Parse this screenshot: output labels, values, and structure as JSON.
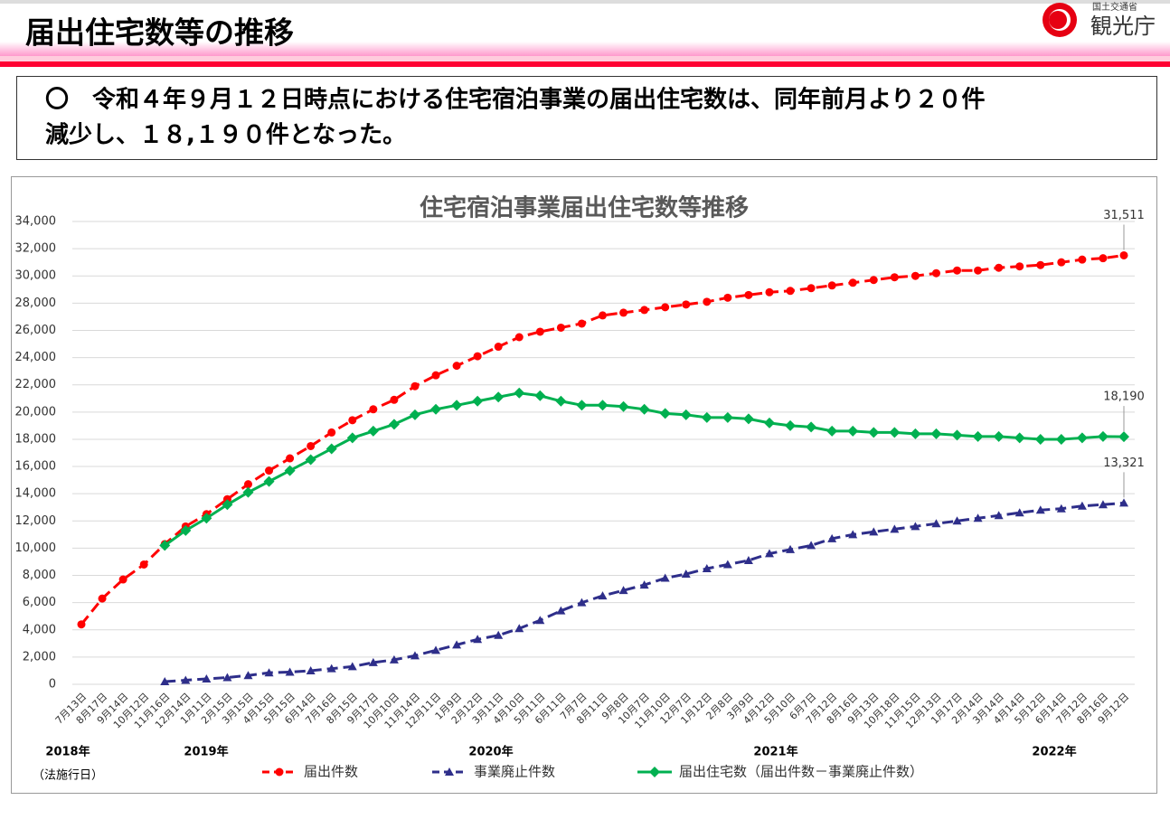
{
  "header": {
    "title": "届出住宅数等の推移",
    "ministry": "国土交通省",
    "agency": "観光庁"
  },
  "summary": [
    "〇　令和４年９月１２日時点における住宅宿泊事業の届出住宅数は、同年前月より２０件",
    "減少し、１８,１９０件となった。"
  ],
  "chart_data": {
    "type": "line",
    "title": "住宅宿泊事業届出住宅数等推移",
    "categories": [
      "7月13日",
      "8月17日",
      "9月14日",
      "10月12日",
      "11月16日",
      "12月14日",
      "1月11日",
      "2月15日",
      "3月15日",
      "4月15日",
      "5月15日",
      "6月14日",
      "7月16日",
      "8月15日",
      "9月17日",
      "10月10日",
      "11月14日",
      "12月11日",
      "1月9日",
      "2月12日",
      "3月11日",
      "4月10日",
      "5月11日",
      "6月11日",
      "7月7日",
      "8月11日",
      "9月8日",
      "10月7日",
      "11月10日",
      "12月7日",
      "1月12日",
      "2月8日",
      "3月9日",
      "4月12日",
      "5月10日",
      "6月7日",
      "7月12日",
      "8月16日",
      "9月13日",
      "10月18日",
      "11月15日",
      "12月13日",
      "1月17日",
      "2月14日",
      "3月14日",
      "4月14日",
      "5月12日",
      "6月14日",
      "7月12日",
      "8月16日",
      "9月12日"
    ],
    "year_labels": [
      "2018年",
      "2019年",
      "2020年",
      "2021年",
      "2022年"
    ],
    "note": "（法施行日）",
    "series": [
      {
        "name": "届出件数",
        "color": "#ff0000",
        "dashed": true,
        "marker": "circle",
        "values": [
          4400,
          6300,
          7700,
          8800,
          10300,
          11600,
          12500,
          13600,
          14700,
          15700,
          16600,
          17500,
          18500,
          19400,
          20200,
          20900,
          21900,
          22700,
          23400,
          24100,
          24800,
          25500,
          25900,
          26200,
          26500,
          27100,
          27300,
          27500,
          27700,
          27900,
          28100,
          28400,
          28600,
          28800,
          28900,
          29100,
          29300,
          29500,
          29700,
          29900,
          30000,
          30200,
          30400,
          30400,
          30600,
          30700,
          30800,
          31000,
          31200,
          31300,
          31511
        ],
        "value_labels": {
          "50": "31,511"
        }
      },
      {
        "name": "事業廃止件数",
        "color": "#2e2e8a",
        "dashed": true,
        "marker": "triangle",
        "values": [
          null,
          null,
          null,
          null,
          200,
          300,
          400,
          500,
          650,
          850,
          900,
          1000,
          1150,
          1300,
          1600,
          1800,
          2100,
          2500,
          2900,
          3300,
          3600,
          4100,
          4700,
          5400,
          6000,
          6500,
          6900,
          7300,
          7800,
          8100,
          8500,
          8800,
          9100,
          9600,
          9900,
          10200,
          10700,
          11000,
          11200,
          11400,
          11600,
          11800,
          12000,
          12200,
          12400,
          12600,
          12800,
          12900,
          13100,
          13200,
          13321
        ],
        "value_labels": {
          "50": "13,321"
        }
      },
      {
        "name": "届出住宅数（届出件数－事業廃止件数）",
        "color": "#00b050",
        "dashed": false,
        "marker": "diamond",
        "values": [
          null,
          null,
          null,
          null,
          10200,
          11300,
          12200,
          13200,
          14100,
          14900,
          15700,
          16500,
          17300,
          18100,
          18600,
          19100,
          19800,
          20200,
          20500,
          20800,
          21100,
          21400,
          21200,
          20800,
          20500,
          20500,
          20400,
          20200,
          19900,
          19800,
          19600,
          19600,
          19500,
          19200,
          19000,
          18900,
          18600,
          18600,
          18500,
          18500,
          18400,
          18400,
          18300,
          18200,
          18200,
          18100,
          18000,
          18000,
          18100,
          18200,
          18190
        ],
        "value_labels": {
          "50": "18,190"
        }
      }
    ],
    "ylim": [
      0,
      34000
    ],
    "yticks": [
      0,
      {
        "value": 2000,
        "label": "2,000"
      },
      {
        "value": 4000,
        "label": "4,000"
      },
      {
        "value": 6000,
        "label": "6,000"
      },
      {
        "value": 8000,
        "label": "8,000"
      },
      {
        "value": 10000,
        "label": "10,000"
      },
      {
        "value": 12000,
        "label": "12,000"
      },
      {
        "value": 14000,
        "label": "14,000"
      },
      {
        "value": 16000,
        "label": "16,000"
      },
      {
        "value": 18000,
        "label": "18,000"
      },
      {
        "value": 20000,
        "label": "20,000"
      },
      {
        "value": 22000,
        "label": "22,000"
      },
      {
        "value": 24000,
        "label": "24,000"
      },
      {
        "value": 26000,
        "label": "26,000"
      },
      {
        "value": 28000,
        "label": "28,000"
      },
      {
        "value": 30000,
        "label": "30,000"
      },
      {
        "value": 32000,
        "label": "32,000"
      },
      {
        "value": 34000,
        "label": "34,000"
      }
    ],
    "grid": true,
    "legend": "bottom"
  }
}
